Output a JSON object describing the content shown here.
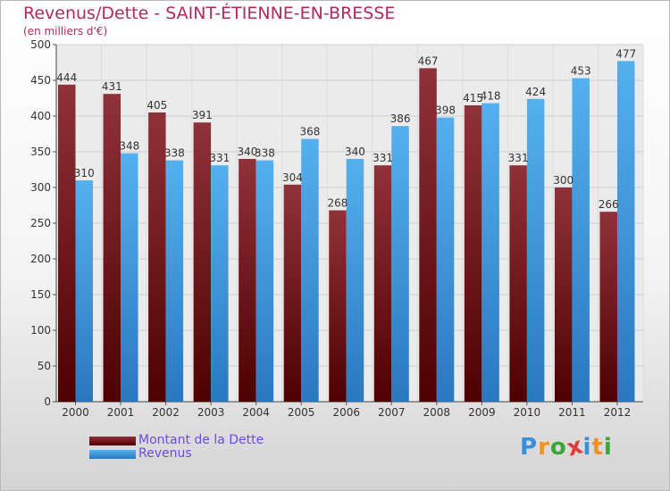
{
  "title": "Revenus/Dette - SAINT-ÉTIENNE-EN-BRESSE",
  "subtitle": "(en milliers d'€)",
  "logo": {
    "text": "Proxiti",
    "letters": [
      "P",
      "r",
      "o",
      "x",
      "i",
      "t",
      "i"
    ],
    "letter_colors": [
      "#3a8fd9",
      "#f29220",
      "#3aa63a",
      "#e03c3c",
      "#3a8fd9",
      "#f29220",
      "#3aa63a"
    ]
  },
  "chart_data": {
    "type": "bar",
    "title": "Revenus/Dette - SAINT-ÉTIENNE-EN-BRESSE",
    "subtitle": "(en milliers d'€)",
    "xlabel": "",
    "ylabel": "",
    "ylim": [
      0,
      500
    ],
    "y_ticks": [
      0,
      50,
      100,
      150,
      200,
      250,
      300,
      350,
      400,
      450,
      500
    ],
    "grid": true,
    "legend_position": "bottom-left",
    "categories": [
      "2000",
      "2001",
      "2002",
      "2003",
      "2004",
      "2005",
      "2006",
      "2007",
      "2008",
      "2009",
      "2010",
      "2011",
      "2012"
    ],
    "series": [
      {
        "name": "Montant de la Dette",
        "color": "#8b2c33",
        "values": [
          444,
          431,
          405,
          391,
          340,
          304,
          268,
          331,
          467,
          415,
          331,
          300,
          266
        ]
      },
      {
        "name": "Revenus",
        "color": "#4aa3e6",
        "values": [
          310,
          348,
          338,
          331,
          338,
          368,
          340,
          386,
          398,
          418,
          424,
          453,
          477
        ]
      }
    ]
  }
}
